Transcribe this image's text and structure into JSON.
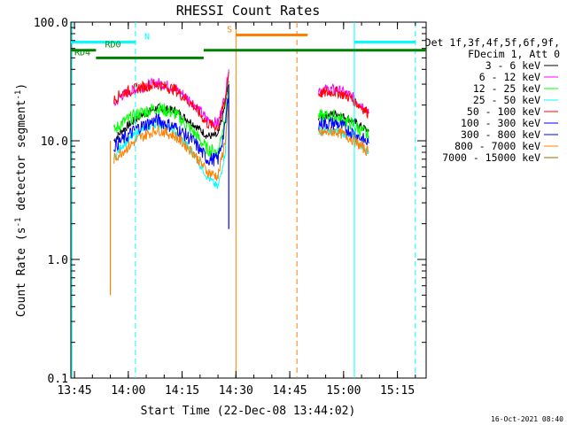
{
  "chart_data": {
    "type": "line",
    "title": "RHESSI Count Rates",
    "xlabel": "Start Time (22-Dec-08 13:44:02)",
    "ylabel_parts": [
      "Count Rate (s",
      "-1",
      " detector segment",
      "-1",
      ")"
    ],
    "ylim": [
      0.1,
      100.0
    ],
    "y_scale": "log",
    "xlim_minutes": [
      "13:44",
      "15:23"
    ],
    "x_ticks": [
      "13:45",
      "14:00",
      "14:15",
      "14:30",
      "14:45",
      "15:00",
      "15:15"
    ],
    "y_ticks": [
      "0.1",
      "1.0",
      "10.0",
      "100.0"
    ],
    "legend_header": [
      "Det 1f,3f,4f,5f,6f,9f,",
      "FDecim 1, Att 0"
    ],
    "series": [
      {
        "name": "3 - 6 keV",
        "color": "#000000",
        "segments": [
          [
            [
              "13:56",
              10
            ],
            [
              "13:58",
              12
            ],
            [
              "14:03",
              16
            ],
            [
              "14:08",
              19
            ],
            [
              "14:13",
              18
            ],
            [
              "14:18",
              14
            ],
            [
              "14:22",
              11
            ],
            [
              "14:25",
              11
            ],
            [
              "14:27",
              20
            ],
            [
              "14:28",
              30
            ]
          ],
          [
            [
              "14:53",
              16
            ],
            [
              "14:58",
              17
            ],
            [
              "15:02",
              15
            ],
            [
              "15:07",
              12
            ]
          ]
        ]
      },
      {
        "name": "6 - 12 keV",
        "color": "#ff00ff",
        "segments": [
          [
            [
              "13:56",
              20
            ],
            [
              "13:58",
              24
            ],
            [
              "14:03",
              28
            ],
            [
              "14:08",
              31
            ],
            [
              "14:13",
              28
            ],
            [
              "14:18",
              21
            ],
            [
              "14:22",
              15
            ],
            [
              "14:25",
              14
            ],
            [
              "14:27",
              24
            ],
            [
              "14:28",
              40
            ]
          ],
          [
            [
              "14:53",
              27
            ],
            [
              "14:58",
              27
            ],
            [
              "15:02",
              24
            ],
            [
              "15:07",
              18
            ]
          ]
        ]
      },
      {
        "name": "12 - 25 keV",
        "color": "#00ff00",
        "segments": [
          [
            [
              "13:56",
              12
            ],
            [
              "13:58",
              14
            ],
            [
              "14:03",
              17
            ],
            [
              "14:08",
              19
            ],
            [
              "14:13",
              17
            ],
            [
              "14:18",
              12
            ],
            [
              "14:22",
              8.5
            ],
            [
              "14:25",
              8
            ],
            [
              "14:27",
              16
            ],
            [
              "14:28",
              32
            ]
          ],
          [
            [
              "14:53",
              16
            ],
            [
              "14:58",
              16
            ],
            [
              "15:02",
              14
            ],
            [
              "15:07",
              11
            ]
          ]
        ]
      },
      {
        "name": "25 - 50 keV",
        "color": "#00ffff",
        "segments": [
          [
            [
              "13:56",
              7
            ],
            [
              "13:58",
              9
            ],
            [
              "14:03",
              12
            ],
            [
              "14:08",
              14
            ],
            [
              "14:13",
              12
            ],
            [
              "14:18",
              8
            ],
            [
              "14:22",
              5
            ],
            [
              "14:25",
              4
            ],
            [
              "14:27",
              8
            ],
            [
              "14:28",
              25
            ]
          ],
          [
            [
              "14:53",
              12
            ],
            [
              "14:58",
              12
            ],
            [
              "15:02",
              11
            ],
            [
              "15:07",
              8
            ]
          ]
        ]
      },
      {
        "name": "50 - 100 keV",
        "color": "#ff0000",
        "segments": [
          [
            [
              "13:56",
              22
            ],
            [
              "13:58",
              25
            ],
            [
              "14:03",
              28
            ],
            [
              "14:08",
              30
            ],
            [
              "14:13",
              27
            ],
            [
              "14:18",
              20
            ],
            [
              "14:22",
              14
            ],
            [
              "14:25",
              13
            ],
            [
              "14:27",
              22
            ],
            [
              "14:28",
              38
            ]
          ],
          [
            [
              "14:53",
              25
            ],
            [
              "14:58",
              26
            ],
            [
              "15:02",
              23
            ],
            [
              "15:07",
              17
            ]
          ]
        ]
      },
      {
        "name": "100 - 300 keV",
        "color": "#0000ff",
        "segments": [
          [
            [
              "13:56",
              9
            ],
            [
              "13:58",
              10
            ],
            [
              "14:03",
              13
            ],
            [
              "14:08",
              15
            ],
            [
              "14:13",
              13
            ],
            [
              "14:18",
              10
            ],
            [
              "14:22",
              7
            ],
            [
              "14:25",
              7
            ],
            [
              "14:27",
              13
            ],
            [
              "14:28",
              26
            ]
          ],
          [
            [
              "14:53",
              14
            ],
            [
              "14:58",
              14
            ],
            [
              "15:02",
              12
            ],
            [
              "15:07",
              9.5
            ]
          ]
        ]
      },
      {
        "name": "300 - 800 keV",
        "color": "#0000ff",
        "segments": []
      },
      {
        "name": "800 - 7000 keV",
        "color": "#ff8000",
        "segments": [
          [
            [
              "13:56",
              7
            ],
            [
              "13:58",
              8
            ],
            [
              "14:03",
              10.5
            ],
            [
              "14:08",
              12.5
            ],
            [
              "14:13",
              11
            ],
            [
              "14:18",
              8
            ],
            [
              "14:22",
              5.5
            ],
            [
              "14:25",
              5
            ],
            [
              "14:27",
              10
            ],
            [
              "14:28",
              20
            ]
          ],
          [
            [
              "14:53",
              11.5
            ],
            [
              "14:58",
              12
            ],
            [
              "15:02",
              10.5
            ],
            [
              "15:07",
              8
            ]
          ]
        ]
      },
      {
        "name": "7000 - 15000 keV",
        "color": "#a06400",
        "segments": []
      }
    ],
    "spikes": [
      {
        "time": "13:55",
        "color": "#ff8000",
        "low": 0.5,
        "high": 10
      },
      {
        "time": "14:28",
        "color": "#0000ff",
        "low": 1.8,
        "high": 30
      }
    ],
    "vlines": [
      {
        "time": "13:44.3",
        "color": "#00ffff",
        "style": "solid"
      },
      {
        "time": "14:02",
        "color": "#00ffff",
        "style": "dashed"
      },
      {
        "time": "14:30",
        "color": "#ff8000",
        "style": "solid"
      },
      {
        "time": "14:47",
        "color": "#ff8000",
        "style": "dashed"
      },
      {
        "time": "15:03",
        "color": "#00ffff",
        "style": "solid"
      },
      {
        "time": "15:20",
        "color": "#00ffff",
        "style": "dashed"
      }
    ],
    "bars": [
      {
        "label": "N",
        "color": "#00ffff",
        "level": 68,
        "segments": [
          [
            "13:44",
            "14:02"
          ],
          [
            "15:03",
            "15:20"
          ]
        ],
        "label_time": "14:04"
      },
      {
        "label": "S",
        "color": "#ff8000",
        "level": 78,
        "segments": [
          [
            "14:30",
            "14:50"
          ]
        ],
        "label_time": "14:27"
      },
      {
        "label": "RD0",
        "color": "#008000",
        "level": 58,
        "segments": [
          [
            "13:44",
            "13:51"
          ],
          [
            "14:21",
            "15:23"
          ]
        ],
        "label_time": "13:53"
      },
      {
        "label": "RD4",
        "color": "#008000",
        "level": 50,
        "segments": [
          [
            "13:51",
            "14:21"
          ]
        ],
        "label_time": "13:44.5"
      }
    ],
    "legend_placement": "right",
    "grid": false
  },
  "footer": {
    "timestamp": "16-Oct-2021 08:40"
  }
}
